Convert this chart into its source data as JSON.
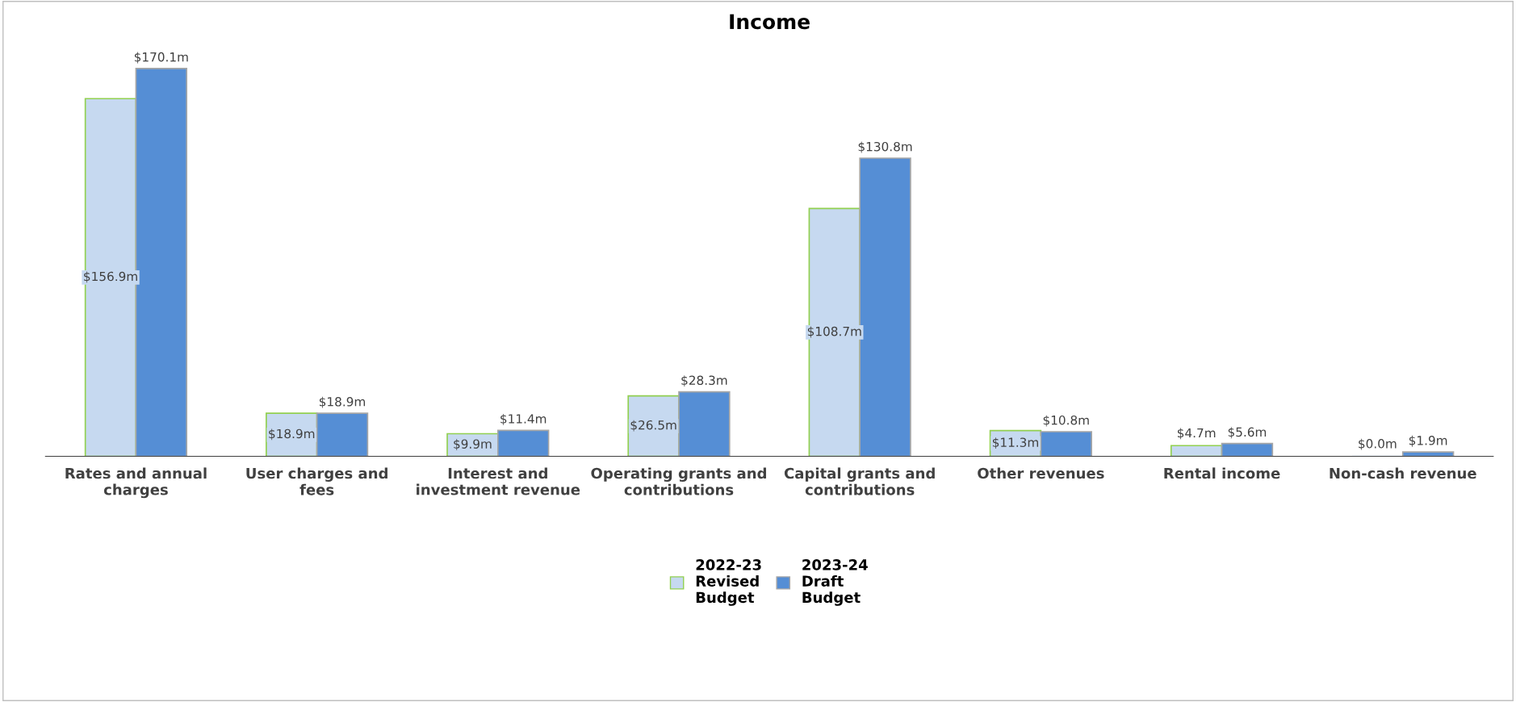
{
  "chart_data": {
    "type": "bar",
    "title": "Income",
    "categories": [
      "Rates and annual charges",
      "User charges and fees",
      "Interest and investment revenue",
      "Operating grants and contributions",
      "Capital grants and contributions",
      "Other revenues",
      "Rental income",
      "Non-cash revenue"
    ],
    "series": [
      {
        "name": "2022-23 Revised Budget",
        "color": "#c6d9f0",
        "values": [
          156.9,
          18.9,
          9.9,
          26.5,
          108.7,
          11.3,
          4.7,
          0.0
        ],
        "value_labels": [
          "$156.9m",
          "$18.9m",
          "$9.9m",
          "$26.5m",
          "$108.7m",
          "$11.3m",
          "$4.7m",
          "$0.0m"
        ]
      },
      {
        "name": "2023-24 Draft Budget",
        "color": "#558ed5",
        "values": [
          170.1,
          18.9,
          11.4,
          28.3,
          130.8,
          10.8,
          5.6,
          1.9
        ],
        "value_labels": [
          "$170.1m",
          "$18.9m",
          "$11.4m",
          "$28.3m",
          "$130.8m",
          "$10.8m",
          "$5.6m",
          "$1.9m"
        ]
      }
    ],
    "tick_labels": "x",
    "grid": false,
    "legend": "bottom"
  }
}
